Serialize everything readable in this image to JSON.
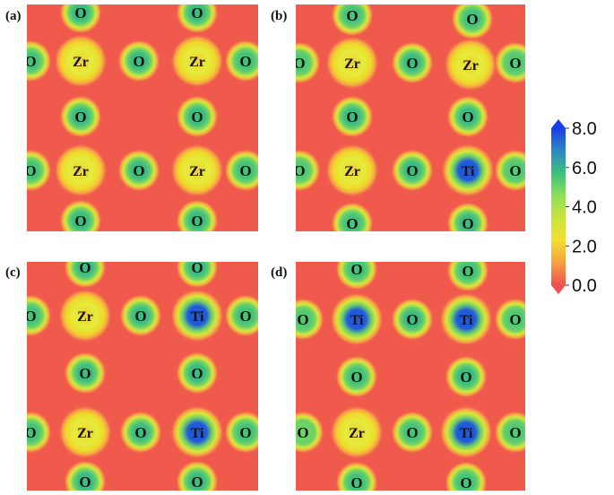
{
  "panels": [
    {
      "label": "(a)",
      "atoms": [
        {
          "el": "O",
          "v": 5.8
        },
        {
          "el": "O",
          "v": 5.8
        },
        {
          "el": "O",
          "v": 5.6
        },
        {
          "el": "Zr",
          "v": 2.0
        },
        {
          "el": "O",
          "v": 5.8
        },
        {
          "el": "Zr",
          "v": 2.0
        },
        {
          "el": "O",
          "v": 5.6
        },
        {
          "el": "O",
          "v": 5.8
        },
        {
          "el": "O",
          "v": 5.8
        },
        {
          "el": "O",
          "v": 5.6
        },
        {
          "el": "Zr",
          "v": 2.0
        },
        {
          "el": "O",
          "v": 5.8
        },
        {
          "el": "Zr",
          "v": 2.0
        },
        {
          "el": "O",
          "v": 5.6
        },
        {
          "el": "O",
          "v": 5.8
        },
        {
          "el": "O",
          "v": 5.8
        }
      ]
    },
    {
      "label": "(b)",
      "atoms": [
        {
          "el": "O",
          "v": 5.6
        },
        {
          "el": "O",
          "v": 5.6
        },
        {
          "el": "O",
          "v": 5.4
        },
        {
          "el": "Zr",
          "v": 2.0
        },
        {
          "el": "O",
          "v": 5.8
        },
        {
          "el": "Zr",
          "v": 2.0
        },
        {
          "el": "O",
          "v": 5.4
        },
        {
          "el": "O",
          "v": 5.8
        },
        {
          "el": "O",
          "v": 5.8
        },
        {
          "el": "O",
          "v": 5.4
        },
        {
          "el": "Zr",
          "v": 2.0
        },
        {
          "el": "O",
          "v": 5.8
        },
        {
          "el": "Ti",
          "v": 7.6
        },
        {
          "el": "O",
          "v": 5.4
        },
        {
          "el": "O",
          "v": 5.6
        },
        {
          "el": "O",
          "v": 5.8
        }
      ]
    },
    {
      "label": "(c)",
      "atoms": [
        {
          "el": "O",
          "v": 5.8
        },
        {
          "el": "O",
          "v": 5.8
        },
        {
          "el": "O",
          "v": 5.6
        },
        {
          "el": "Zr",
          "v": 2.0
        },
        {
          "el": "O",
          "v": 5.8
        },
        {
          "el": "Ti",
          "v": 7.6
        },
        {
          "el": "O",
          "v": 5.6
        },
        {
          "el": "O",
          "v": 5.8
        },
        {
          "el": "O",
          "v": 5.8
        },
        {
          "el": "O",
          "v": 5.6
        },
        {
          "el": "Zr",
          "v": 2.0
        },
        {
          "el": "O",
          "v": 5.8
        },
        {
          "el": "Ti",
          "v": 7.6
        },
        {
          "el": "O",
          "v": 5.6
        },
        {
          "el": "O",
          "v": 5.8
        },
        {
          "el": "O",
          "v": 5.8
        }
      ]
    },
    {
      "label": "(d)",
      "atoms": [
        {
          "el": "O",
          "v": 5.6
        },
        {
          "el": "O",
          "v": 5.6
        },
        {
          "el": "O",
          "v": 5.4
        },
        {
          "el": "Ti",
          "v": 7.6
        },
        {
          "el": "O",
          "v": 5.8
        },
        {
          "el": "Ti",
          "v": 7.6
        },
        {
          "el": "O",
          "v": 5.4
        },
        {
          "el": "O",
          "v": 5.6
        },
        {
          "el": "O",
          "v": 5.8
        },
        {
          "el": "O",
          "v": 5.0
        },
        {
          "el": "Zr",
          "v": 2.0
        },
        {
          "el": "O",
          "v": 5.6
        },
        {
          "el": "Ti",
          "v": 7.6
        },
        {
          "el": "O",
          "v": 5.4
        },
        {
          "el": "O",
          "v": 5.6
        },
        {
          "el": "O",
          "v": 5.6
        }
      ]
    }
  ],
  "colorbar": {
    "min": 0.0,
    "max": 8.0,
    "tick_labels": [
      "0.0",
      "2.0",
      "4.0",
      "6.0",
      "8.0"
    ],
    "ramp_colors": [
      "#f05050",
      "#f6a040",
      "#f2e030",
      "#c8e43a",
      "#8ede5a",
      "#3cc07c",
      "#2a8ac4",
      "#1a3ee6"
    ]
  },
  "colors": {
    "background_field": "#f05a4c",
    "halo_inner": "#f0d82a"
  }
}
